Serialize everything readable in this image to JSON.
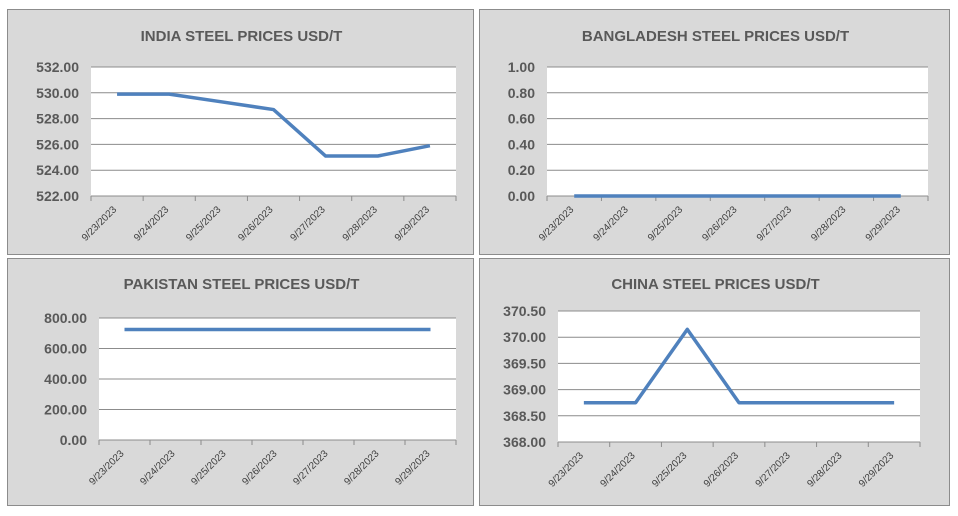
{
  "chart_data": [
    {
      "type": "line",
      "title": "INDIA STEEL PRICES USD/T",
      "categories": [
        "9/23/2023",
        "9/24/2023",
        "9/25/2023",
        "9/26/2023",
        "9/27/2023",
        "9/28/2023",
        "9/29/2023"
      ],
      "values": [
        529.9,
        529.9,
        529.3,
        528.7,
        525.1,
        525.1,
        525.9
      ],
      "ylim": [
        522,
        532
      ],
      "yticks": [
        "522.00",
        "524.00",
        "526.00",
        "528.00",
        "530.00",
        "532.00"
      ],
      "grid": true,
      "color": "#4f81bd"
    },
    {
      "type": "line",
      "title": "BANGLADESH STEEL PRICES USD/T",
      "categories": [
        "9/23/2023",
        "9/24/2023",
        "9/25/2023",
        "9/26/2023",
        "9/27/2023",
        "9/28/2023",
        "9/29/2023"
      ],
      "values": [
        0,
        0,
        0,
        0,
        0,
        0,
        0
      ],
      "ylim": [
        0,
        1
      ],
      "yticks": [
        "0.00",
        "0.20",
        "0.40",
        "0.60",
        "0.80",
        "1.00"
      ],
      "grid": true,
      "color": "#4f81bd"
    },
    {
      "type": "line",
      "title": "PAKISTAN STEEL PRICES USD/T",
      "categories": [
        "9/23/2023",
        "9/24/2023",
        "9/25/2023",
        "9/26/2023",
        "9/27/2023",
        "9/28/2023",
        "9/29/2023"
      ],
      "values": [
        725,
        725,
        725,
        725,
        725,
        725,
        725
      ],
      "ylim": [
        0,
        800
      ],
      "yticks": [
        "0.00",
        "200.00",
        "400.00",
        "600.00",
        "800.00"
      ],
      "grid": true,
      "color": "#4f81bd"
    },
    {
      "type": "line",
      "title": "CHINA STEEL PRICES USD/T",
      "categories": [
        "9/23/2023",
        "9/24/2023",
        "9/25/2023",
        "9/26/2023",
        "9/27/2023",
        "9/28/2023",
        "9/29/2023"
      ],
      "values": [
        368.75,
        368.75,
        370.15,
        368.75,
        368.75,
        368.75,
        368.75
      ],
      "ylim": [
        368,
        370.5
      ],
      "yticks": [
        "368.00",
        "368.50",
        "369.00",
        "369.50",
        "370.00",
        "370.50"
      ],
      "grid": true,
      "color": "#4f81bd"
    }
  ]
}
